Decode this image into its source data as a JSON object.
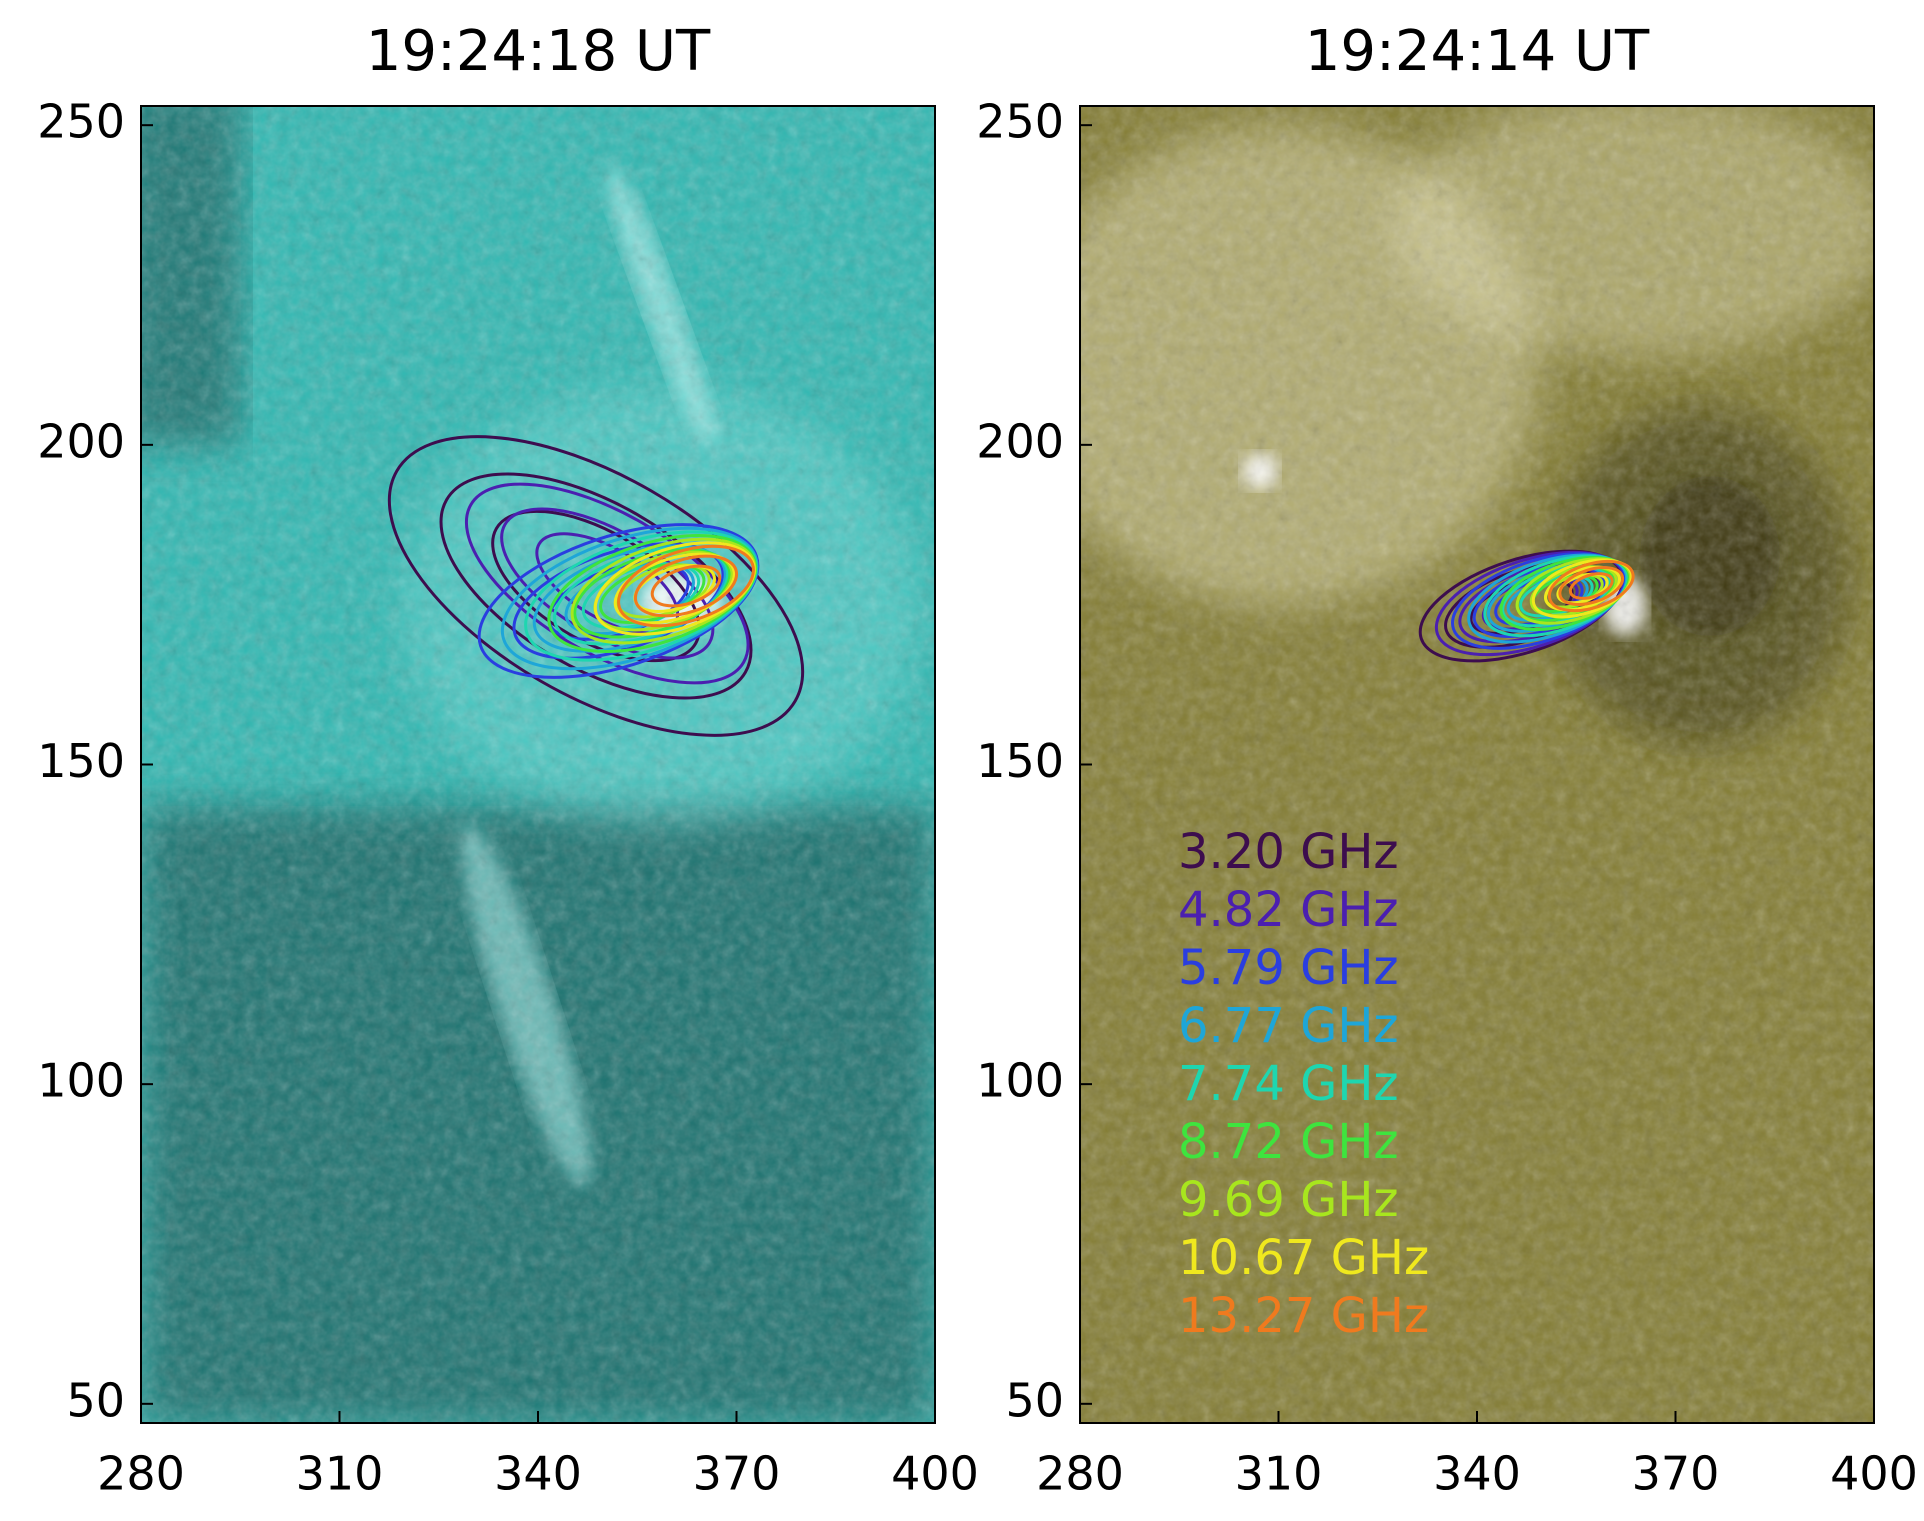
{
  "chart_data": [
    {
      "type": "image",
      "title": "19:24:18 UT",
      "xlim": [
        280,
        400
      ],
      "ylim": [
        47,
        253
      ],
      "xticks": [
        280,
        310,
        340,
        370,
        400
      ],
      "yticks": [
        50,
        100,
        150,
        200,
        250
      ],
      "color": "#2fb8b2"
    },
    {
      "type": "image",
      "title": "19:24:14 UT",
      "xlim": [
        280,
        400
      ],
      "ylim": [
        47,
        253
      ],
      "xticks": [
        280,
        310,
        340,
        370,
        400
      ],
      "yticks": [
        50,
        100,
        150,
        200,
        250
      ],
      "color": "#847d33",
      "legend": [
        {
          "label": "3.20 GHz",
          "color": "#3d0d4e"
        },
        {
          "label": "4.82 GHz",
          "color": "#4b1fb0"
        },
        {
          "label": "5.79 GHz",
          "color": "#2a3ee0"
        },
        {
          "label": "6.77 GHz",
          "color": "#1ea6d8"
        },
        {
          "label": "7.74 GHz",
          "color": "#1ed6b0"
        },
        {
          "label": "8.72 GHz",
          "color": "#3ee43e"
        },
        {
          "label": "9.69 GHz",
          "color": "#a8e61e"
        },
        {
          "label": "10.67 GHz",
          "color": "#f0e81e"
        },
        {
          "label": "13.27 GHz",
          "color": "#f07a1e"
        }
      ]
    }
  ]
}
